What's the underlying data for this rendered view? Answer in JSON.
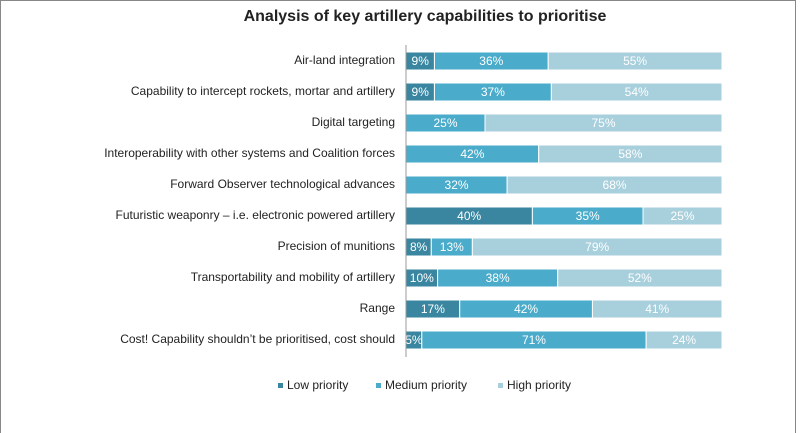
{
  "chart_data": {
    "type": "stacked-bar-horizontal",
    "title": "Analysis of key artillery capabilities to prioritise",
    "categories": [
      "Air-land integration",
      "Capability to intercept rockets, mortar and artillery",
      "Digital targeting",
      "Interoperability with other systems and Coalition forces",
      "Forward Observer technological advances",
      "Futuristic weaponry – i.e. electronic powered artillery",
      "Precision of munitions",
      "Transportability and mobility of artillery",
      "Range",
      "Cost! Capability shouldn’t be prioritised, cost should"
    ],
    "series": [
      {
        "name": "Low priority",
        "color": "#3a86a0",
        "values": [
          9,
          9,
          null,
          null,
          null,
          40,
          8,
          10,
          17,
          5
        ],
        "value_labels": [
          "9%",
          "9%",
          null,
          null,
          null,
          "40%",
          "8%",
          "10%",
          "17%",
          "5%"
        ]
      },
      {
        "name": "Medium priority",
        "color": "#4aabca",
        "values": [
          36,
          37,
          25,
          42,
          32,
          35,
          13,
          38,
          42,
          71
        ],
        "value_labels": [
          "36%",
          "37%",
          "25%",
          "42%",
          "32%",
          "35%",
          "13%",
          "38%",
          "42%",
          "71%"
        ]
      },
      {
        "name": "High priority",
        "color": "#a8cfdc",
        "values": [
          55,
          54,
          75,
          58,
          68,
          25,
          79,
          52,
          41,
          24
        ],
        "value_labels": [
          "55%",
          "54%",
          "75%",
          "58%",
          "68%",
          "25%",
          "79%",
          "52%",
          "41%",
          "24%"
        ]
      }
    ],
    "xlim": [
      0,
      100
    ],
    "legend": "bottom"
  }
}
